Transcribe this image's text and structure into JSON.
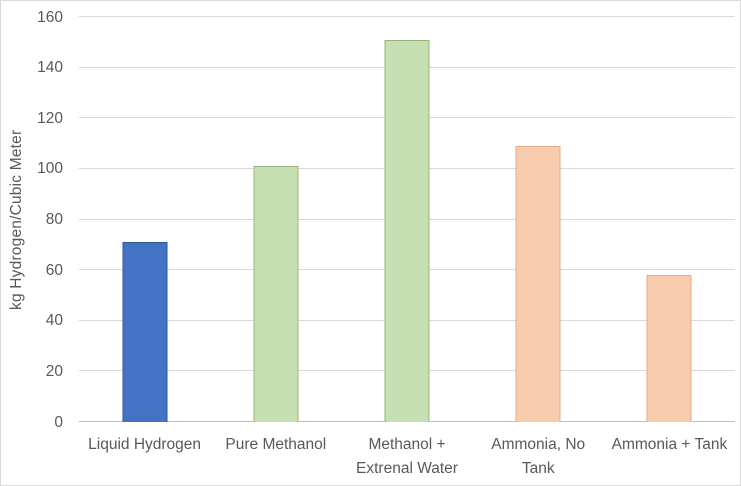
{
  "chart_data": {
    "type": "bar",
    "title": "",
    "xlabel": "",
    "ylabel": "kg Hydrogen/Cubic Meter",
    "ylim": [
      0,
      160
    ],
    "yticks": [
      0,
      20,
      40,
      60,
      80,
      100,
      120,
      140,
      160
    ],
    "grid": true,
    "legend": "none",
    "categories": [
      "Liquid Hydrogen",
      "Pure Methanol",
      "Methanol + Extrenal Water",
      "Ammonia, No Tank",
      "Ammonia + Tank"
    ],
    "category_lines": [
      [
        "Liquid Hydrogen"
      ],
      [
        "Pure Methanol"
      ],
      [
        "Methanol +",
        "Extrenal Water"
      ],
      [
        "Ammonia, No",
        "Tank"
      ],
      [
        "Ammonia + Tank"
      ]
    ],
    "values": [
      71,
      101,
      151,
      109,
      58
    ],
    "bar_styles": [
      {
        "fill": "#4472C4",
        "border": "#2F5597"
      },
      {
        "fill": "#C6E0B4",
        "border": "#94B577"
      },
      {
        "fill": "#C6E0B4",
        "border": "#94B577"
      },
      {
        "fill": "#F8CBAD",
        "border": "#E3AE88"
      },
      {
        "fill": "#F8CBAD",
        "border": "#E3AE88"
      }
    ],
    "colors": {
      "text": "#595959",
      "gridline": "#D9D9D9",
      "axis_line": "#BFBFBF",
      "background": "#FFFFFF",
      "chart_border": "#D9D9D9"
    }
  }
}
